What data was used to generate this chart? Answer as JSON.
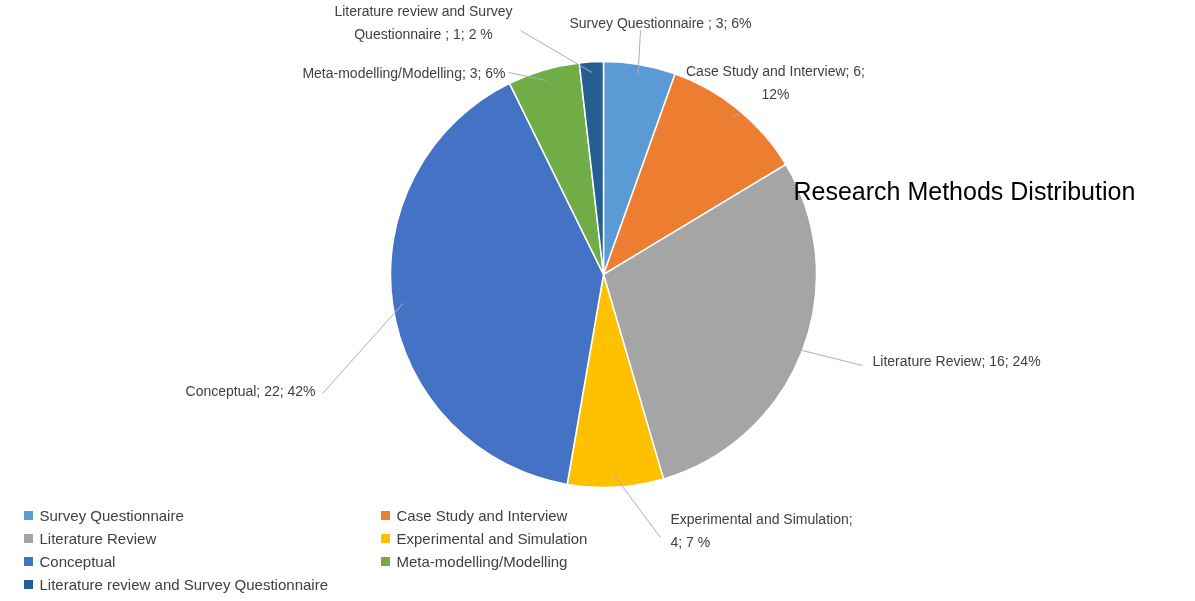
{
  "chart_data": {
    "type": "pie",
    "title": "Research Methods Distribution",
    "categories": [
      "Survey Questionnaire",
      "Case Study and Interview",
      "Literature Review",
      "Experimental and Simulation",
      "Conceptual",
      "Meta-modelling/Modelling",
      "Literature review and Survey Questionnaire"
    ],
    "values": [
      3,
      6,
      16,
      4,
      22,
      3,
      1
    ],
    "colors": [
      "#5b9bd5",
      "#ed7d31",
      "#a5a5a5",
      "#ffc000",
      "#4472c4",
      "#70ad47",
      "#255e91"
    ],
    "value_labels": [
      "Survey Questionnaire ; 3; 6%",
      "Case Study and Interview; 6; 12%",
      "Literature Review; 16; 24%",
      "Experimental and Simulation; 4; 7 %",
      "Conceptual; 22; 42%",
      "Meta-modelling/Modelling; 3; 6%",
      "Literature review and Survey Questionnaire ; 1; 2 %"
    ],
    "legend": "bottom left"
  }
}
